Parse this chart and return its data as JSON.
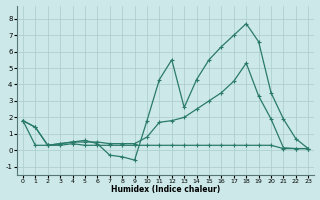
{
  "xlabel": "Humidex (Indice chaleur)",
  "bg_color": "#cce8e8",
  "grid_color": "#aacccc",
  "line_color": "#2a7a6a",
  "xlim": [
    -0.5,
    23.5
  ],
  "ylim": [
    -1.5,
    8.8
  ],
  "yticks": [
    -1,
    0,
    1,
    2,
    3,
    4,
    5,
    6,
    7,
    8
  ],
  "xticks": [
    0,
    1,
    2,
    3,
    4,
    5,
    6,
    7,
    8,
    9,
    10,
    11,
    12,
    13,
    14,
    15,
    16,
    17,
    18,
    19,
    20,
    21,
    22,
    23
  ],
  "series1_x": [
    0,
    1,
    2,
    3,
    4,
    5,
    6,
    7,
    8,
    9,
    10,
    11,
    12,
    13,
    14,
    15,
    16,
    17,
    18,
    19,
    20,
    21,
    22,
    23
  ],
  "series1_y": [
    1.8,
    1.4,
    0.3,
    0.4,
    0.5,
    0.6,
    0.4,
    -0.3,
    -0.4,
    -0.6,
    1.8,
    4.3,
    5.5,
    2.6,
    4.3,
    5.5,
    6.3,
    7.0,
    7.7,
    6.6,
    3.5,
    1.9,
    0.7,
    0.1
  ],
  "series2_x": [
    0,
    1,
    2,
    3,
    4,
    5,
    6,
    7,
    8,
    9,
    10,
    11,
    12,
    13,
    14,
    15,
    16,
    17,
    18,
    19,
    20,
    21,
    22,
    23
  ],
  "series2_y": [
    1.8,
    1.4,
    0.3,
    0.4,
    0.5,
    0.5,
    0.5,
    0.4,
    0.4,
    0.4,
    0.8,
    1.7,
    1.8,
    2.0,
    2.5,
    3.0,
    3.5,
    4.2,
    5.3,
    3.3,
    1.9,
    0.15,
    0.1,
    0.1
  ],
  "series3_x": [
    0,
    1,
    2,
    3,
    4,
    5,
    6,
    7,
    8,
    9,
    10,
    11,
    12,
    13,
    14,
    15,
    16,
    17,
    18,
    19,
    20,
    21,
    22,
    23
  ],
  "series3_y": [
    1.8,
    0.3,
    0.3,
    0.3,
    0.4,
    0.3,
    0.3,
    0.3,
    0.3,
    0.3,
    0.3,
    0.3,
    0.3,
    0.3,
    0.3,
    0.3,
    0.3,
    0.3,
    0.3,
    0.3,
    0.3,
    0.1,
    0.1,
    0.1
  ]
}
